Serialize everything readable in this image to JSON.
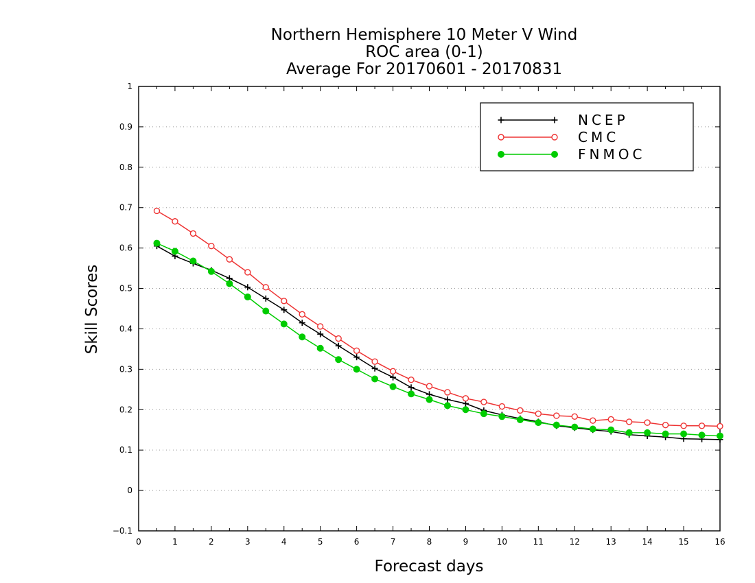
{
  "chart_data": {
    "type": "line",
    "title_lines": [
      "Northern Hemisphere 10 Meter V Wind",
      "ROC area (0-1)",
      "Average For 20170601 - 20170831"
    ],
    "xlabel": "Forecast days",
    "ylabel": "Skill Scores",
    "xlim": [
      0,
      16
    ],
    "ylim": [
      -0.1,
      1
    ],
    "x_ticks": [
      "0",
      "1",
      "2",
      "3",
      "4",
      "5",
      "6",
      "7",
      "8",
      "9",
      "10",
      "11",
      "12",
      "13",
      "14",
      "15",
      "16"
    ],
    "y_ticks": [
      "−0.1",
      "0",
      "0.1",
      "0.2",
      "0.3",
      "0.4",
      "0.5",
      "0.6",
      "0.7",
      "0.8",
      "0.9",
      "1"
    ],
    "grid": "horizontal dotted",
    "legend_position": "top-right",
    "x": [
      0.5,
      1,
      1.5,
      2,
      2.5,
      3,
      3.5,
      4,
      4.5,
      5,
      5.5,
      6,
      6.5,
      7,
      7.5,
      8,
      8.5,
      9,
      9.5,
      10,
      10.5,
      11,
      11.5,
      12,
      12.5,
      13,
      13.5,
      14,
      14.5,
      15,
      15.5,
      16
    ],
    "series": [
      {
        "name": "NCEP",
        "color": "#000000",
        "marker": "plus",
        "values": [
          0.605,
          0.58,
          0.562,
          0.545,
          0.525,
          0.503,
          0.475,
          0.447,
          0.415,
          0.387,
          0.358,
          0.33,
          0.302,
          0.28,
          0.255,
          0.238,
          0.225,
          0.215,
          0.198,
          0.187,
          0.178,
          0.17,
          0.16,
          0.155,
          0.15,
          0.146,
          0.138,
          0.135,
          0.132,
          0.128,
          0.127,
          0.126
        ]
      },
      {
        "name": "CMC",
        "color": "#ee3333",
        "marker": "open-circle",
        "values": [
          0.692,
          0.666,
          0.636,
          0.605,
          0.572,
          0.54,
          0.503,
          0.469,
          0.436,
          0.406,
          0.376,
          0.346,
          0.319,
          0.295,
          0.274,
          0.258,
          0.243,
          0.228,
          0.219,
          0.208,
          0.198,
          0.19,
          0.185,
          0.183,
          0.173,
          0.176,
          0.17,
          0.168,
          0.162,
          0.16,
          0.16,
          0.159
        ]
      },
      {
        "name": "FNMOC",
        "color": "#00cc00",
        "marker": "filled-circle",
        "values": [
          0.612,
          0.592,
          0.568,
          0.542,
          0.512,
          0.479,
          0.444,
          0.412,
          0.38,
          0.352,
          0.324,
          0.3,
          0.276,
          0.257,
          0.239,
          0.225,
          0.21,
          0.2,
          0.19,
          0.183,
          0.175,
          0.168,
          0.162,
          0.157,
          0.152,
          0.15,
          0.143,
          0.143,
          0.14,
          0.14,
          0.137,
          0.135
        ]
      }
    ]
  }
}
